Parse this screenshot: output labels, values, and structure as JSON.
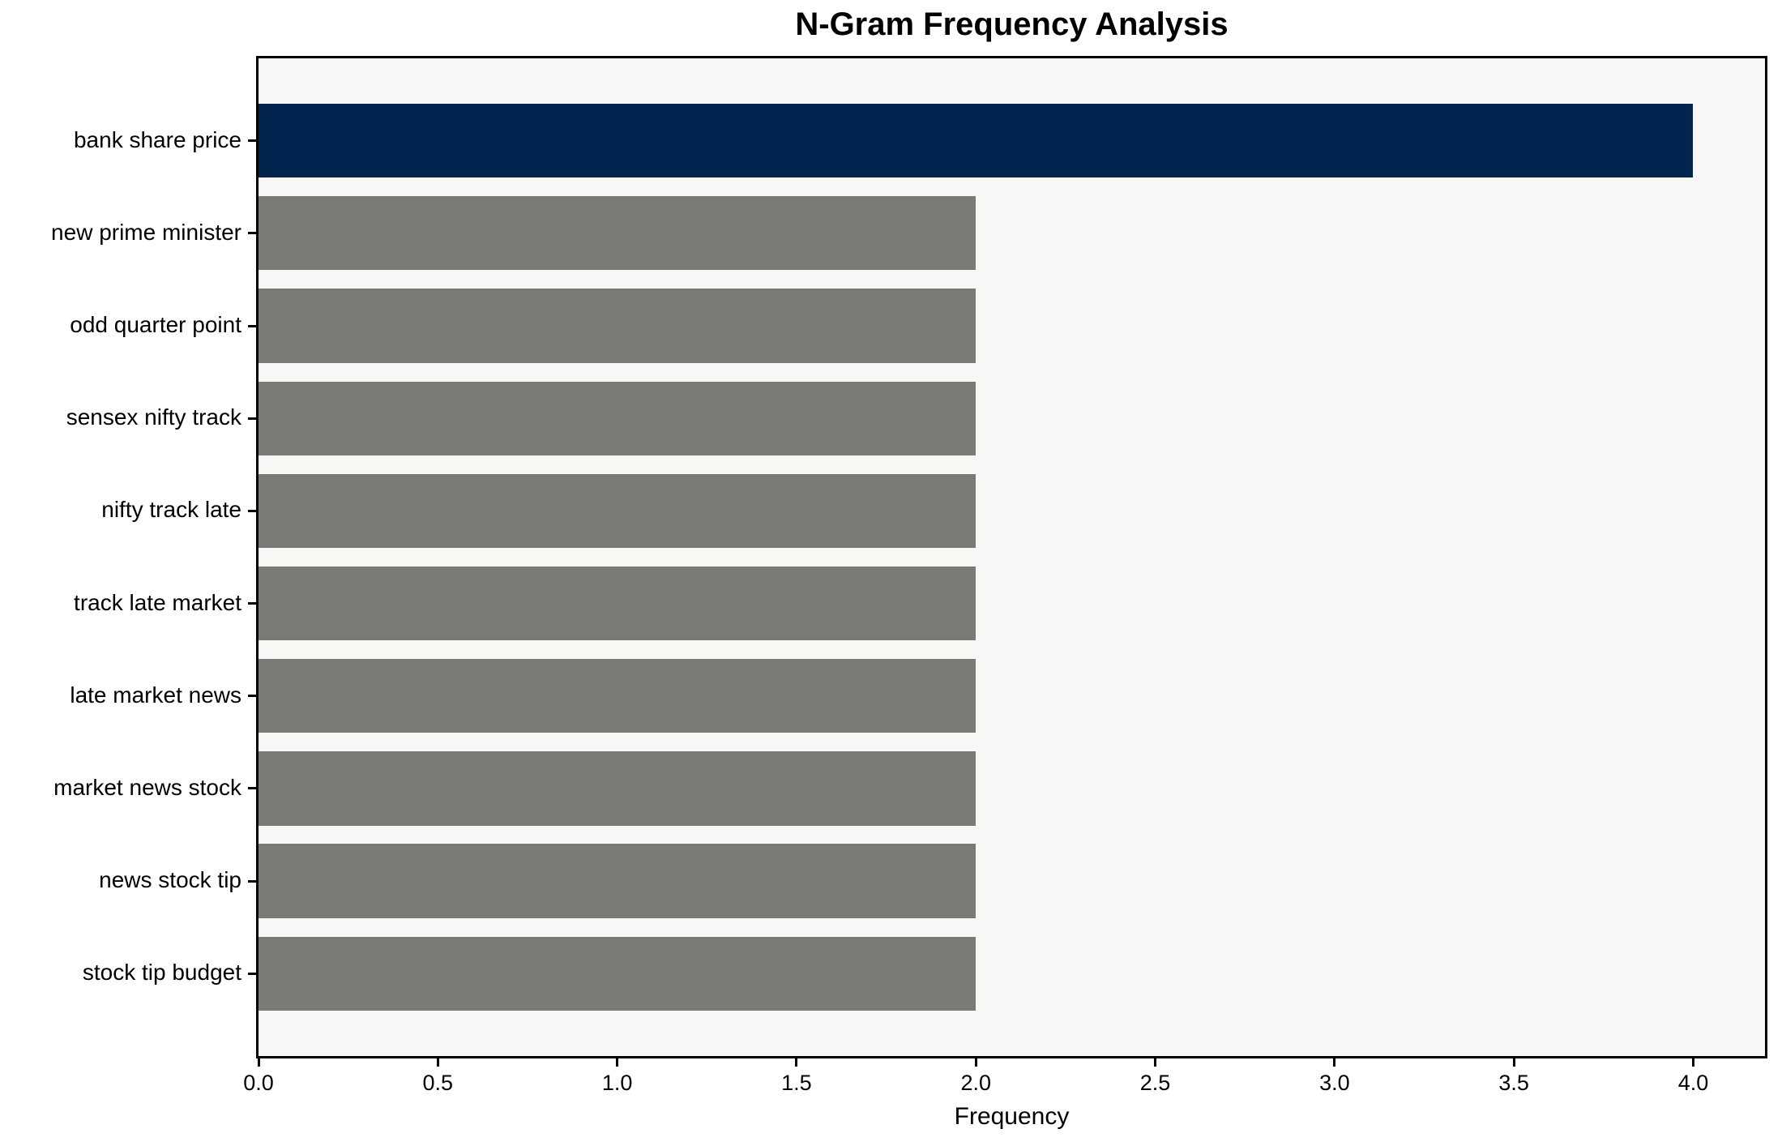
{
  "chart_data": {
    "type": "bar",
    "orientation": "horizontal",
    "title": "N-Gram Frequency Analysis",
    "xlabel": "Frequency",
    "ylabel": "",
    "categories": [
      "bank share price",
      "new prime minister",
      "odd quarter point",
      "sensex nifty track",
      "nifty track late",
      "track late market",
      "late market news",
      "market news stock",
      "news stock tip",
      "stock tip budget"
    ],
    "values": [
      4,
      2,
      2,
      2,
      2,
      2,
      2,
      2,
      2,
      2
    ],
    "bar_colors": [
      "#02254f",
      "#7b7a77",
      "#7b7a77",
      "#7b7a77",
      "#7b7a77",
      "#7b7a77",
      "#7b7a77",
      "#7b7a77",
      "#7b7a77",
      "#7b7a77"
    ],
    "xlim": [
      0,
      4.2
    ],
    "xticks": [
      0.0,
      0.5,
      1.0,
      1.5,
      2.0,
      2.5,
      3.0,
      3.5,
      4.0
    ],
    "xtick_labels": [
      "0.0",
      "0.5",
      "1.0",
      "1.5",
      "2.0",
      "2.5",
      "3.0",
      "3.5",
      "4.0"
    ],
    "grid": false,
    "legend": "none",
    "plot_background": "#f8f7f6",
    "figure_background": "#ffffff",
    "spine_color": "#000000",
    "highlight_color": "#02254f",
    "default_bar_color": "#7b7a77"
  }
}
